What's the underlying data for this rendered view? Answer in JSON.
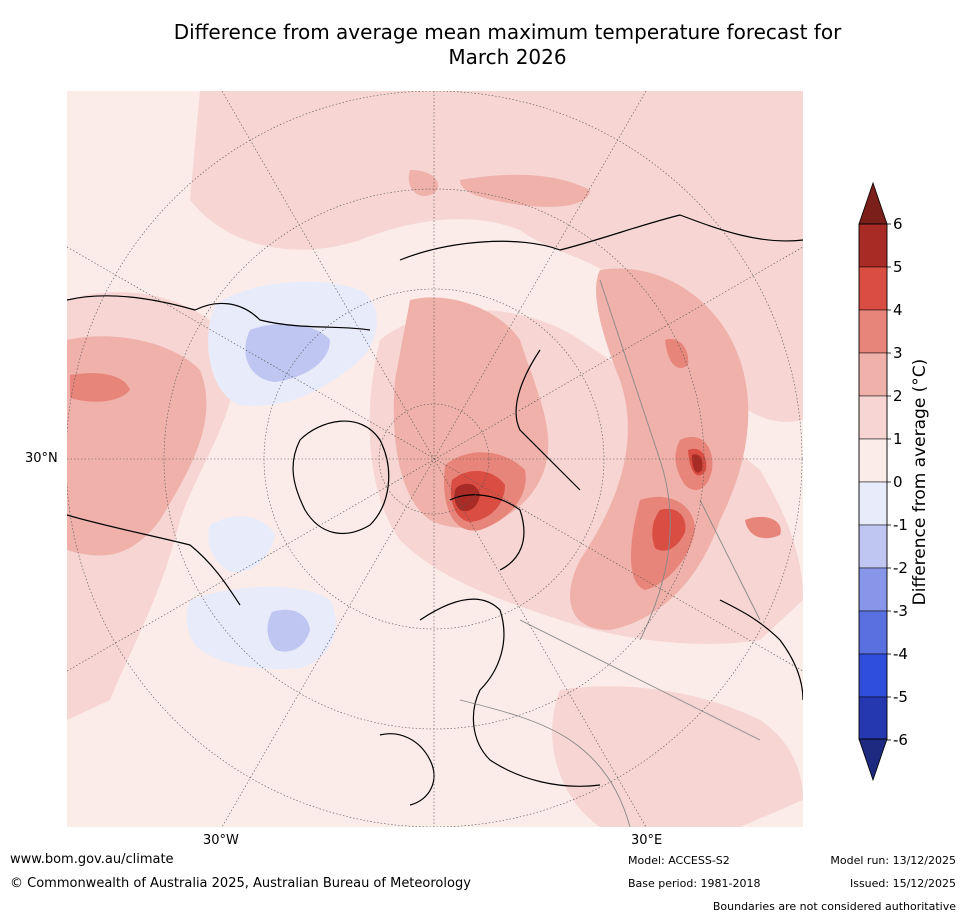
{
  "title_line1": "Difference from average mean maximum temperature forecast for",
  "title_line2": "March 2026",
  "map": {
    "lat_label": "30°N",
    "lon_labels": [
      "30°W",
      "30°E"
    ]
  },
  "legend": {
    "label": "Difference from average (°C)",
    "ticks": [
      "6",
      "5",
      "4",
      "3",
      "2",
      "1",
      "0",
      "-1",
      "-2",
      "-3",
      "-4",
      "-5",
      "-6"
    ],
    "bands": [
      {
        "range": "above 6",
        "color": "#7a1f1a"
      },
      {
        "range": "5 to 6",
        "color": "#a82b25"
      },
      {
        "range": "4 to 5",
        "color": "#d94d42"
      },
      {
        "range": "3 to 4",
        "color": "#e8857b"
      },
      {
        "range": "2 to 3",
        "color": "#efb1aa"
      },
      {
        "range": "1 to 2",
        "color": "#f6d5d2"
      },
      {
        "range": "0 to 1",
        "color": "#fbecea"
      },
      {
        "range": "-1 to 0",
        "color": "#e8ebfa"
      },
      {
        "range": "-2 to -1",
        "color": "#c0c6f2"
      },
      {
        "range": "-3 to -2",
        "color": "#8896ea"
      },
      {
        "range": "-4 to -3",
        "color": "#5a6fe0"
      },
      {
        "range": "-5 to -4",
        "color": "#2f4edc"
      },
      {
        "range": "-6 to -5",
        "color": "#2638b0"
      },
      {
        "range": "below -6",
        "color": "#1e2a80"
      }
    ]
  },
  "footer": {
    "website": "www.bom.gov.au/climate",
    "copyright": "© Commonwealth of Australia 2025, Australian Bureau of Meteorology",
    "model": "Model: ACCESS-S2",
    "base_period": "Base period: 1981-2018",
    "model_run": "Model run: 13/12/2025",
    "issued": "Issued: 15/12/2025",
    "disclaimer": "Boundaries are not considered authoritative"
  }
}
